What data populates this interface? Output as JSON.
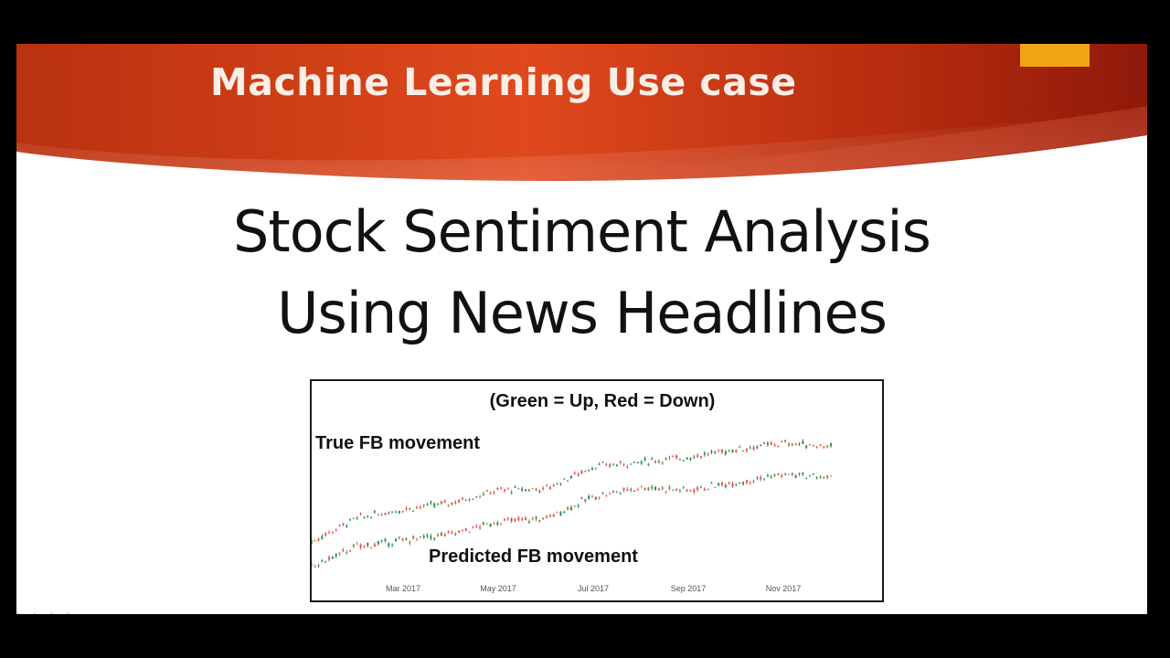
{
  "slide": {
    "banner_title": "Machine Learning Use case",
    "title_line1": "Stock Sentiment Analysis",
    "title_line2": "Using News Headlines",
    "colors": {
      "banner_dark": "#9a1d0c",
      "banner_mid": "#d8401c",
      "banner_light": "#e8541f",
      "accent": "#f2a316",
      "up": "#2e8b57",
      "down": "#e05a4a"
    }
  },
  "chart_data": {
    "type": "candlestick",
    "title": "(Green = Up, Red = Down)",
    "x_ticks": [
      "Mar 2017",
      "May 2017",
      "Jul 2017",
      "Sep 2017",
      "Nov 2017"
    ],
    "annotations": [
      "True FB movement",
      "Predicted FB movement"
    ],
    "series": [
      {
        "name": "True FB movement",
        "approx_trend": [
          {
            "x": "Jan 2017",
            "y": 116
          },
          {
            "x": "Feb 2017",
            "y": 132
          },
          {
            "x": "Mar 2017",
            "y": 138
          },
          {
            "x": "Apr 2017",
            "y": 142
          },
          {
            "x": "May 2017",
            "y": 150
          },
          {
            "x": "Jun 2017",
            "y": 151
          },
          {
            "x": "Jul 2017",
            "y": 165
          },
          {
            "x": "Aug 2017",
            "y": 168
          },
          {
            "x": "Sep 2017",
            "y": 171
          },
          {
            "x": "Oct 2017",
            "y": 176
          },
          {
            "x": "Nov 2017",
            "y": 180
          },
          {
            "x": "Dec 2017",
            "y": 178
          }
        ]
      },
      {
        "name": "Predicted FB movement",
        "approx_trend": [
          {
            "x": "Jan 2017",
            "y": 100
          },
          {
            "x": "Feb 2017",
            "y": 114
          },
          {
            "x": "Mar 2017",
            "y": 118
          },
          {
            "x": "Apr 2017",
            "y": 122
          },
          {
            "x": "May 2017",
            "y": 130
          },
          {
            "x": "Jun 2017",
            "y": 132
          },
          {
            "x": "Jul 2017",
            "y": 146
          },
          {
            "x": "Aug 2017",
            "y": 152
          },
          {
            "x": "Sep 2017",
            "y": 150
          },
          {
            "x": "Oct 2017",
            "y": 155
          },
          {
            "x": "Nov 2017",
            "y": 160
          },
          {
            "x": "Dec 2017",
            "y": 158
          }
        ]
      }
    ],
    "grid": false,
    "legend": "none"
  }
}
